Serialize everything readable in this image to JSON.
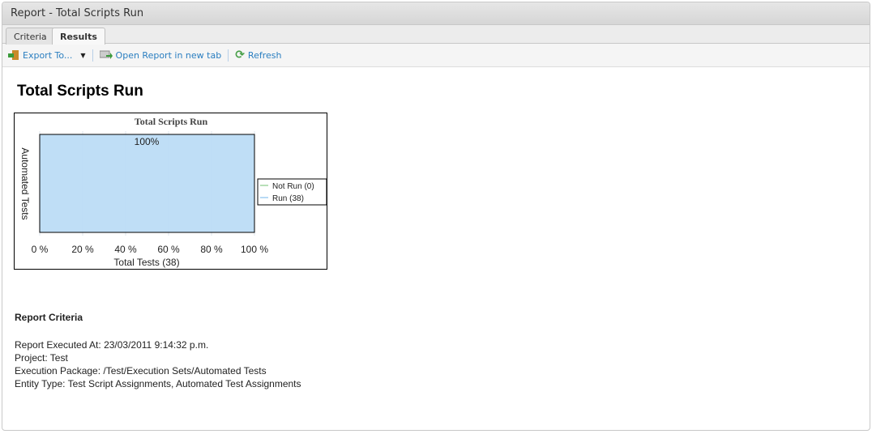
{
  "window": {
    "title": "Report - Total Scripts Run"
  },
  "tabs": [
    {
      "label": "Criteria",
      "active": false
    },
    {
      "label": "Results",
      "active": true
    }
  ],
  "toolbar": {
    "export": "Export To...",
    "open": "Open Report in new tab",
    "refresh": "Refresh"
  },
  "report": {
    "title": "Total Scripts Run"
  },
  "chart_data": {
    "type": "bar",
    "orientation": "horizontal",
    "stacked": "percent",
    "title": "Total Scripts Run",
    "xlabel": "Total Tests (38)",
    "ylabel": "Automated Tests",
    "xlim": [
      0,
      100
    ],
    "xticks": [
      "0 %",
      "20 %",
      "40 %",
      "60 %",
      "80 %",
      "100 %"
    ],
    "grid": true,
    "categories": [
      "Automated Tests"
    ],
    "series": [
      {
        "name": "Not Run (0)",
        "values": [
          0
        ],
        "color": "#b8e0b8"
      },
      {
        "name": "Run (38)",
        "values": [
          100
        ],
        "color": "#b8daf5"
      }
    ],
    "data_labels": [
      "100%"
    ],
    "legend": "right"
  },
  "criteria": {
    "heading": "Report Criteria",
    "lines": [
      "Report Executed At: 23/03/2011 9:14:32 p.m.",
      "Project: Test",
      "Execution Package: /Test/Execution Sets/Automated Tests",
      "Entity Type: Test Script Assignments, Automated Test Assignments"
    ]
  }
}
